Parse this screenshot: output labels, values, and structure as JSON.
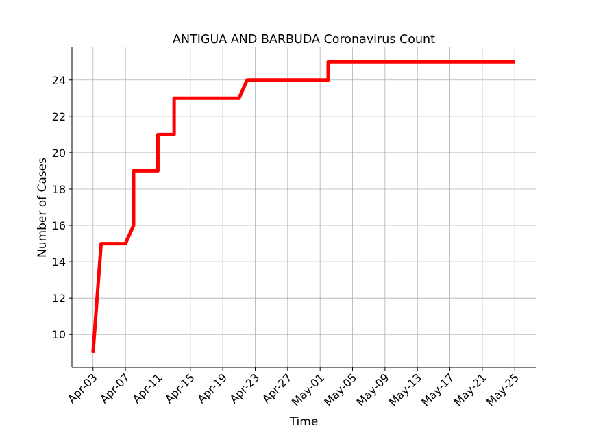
{
  "chart_data": {
    "type": "line",
    "title": "ANTIGUA AND BARBUDA Coronavirus Count",
    "xlabel": "Time",
    "ylabel": "Number of Cases",
    "x_tick_labels": [
      "Apr-03",
      "Apr-07",
      "Apr-11",
      "Apr-15",
      "Apr-19",
      "Apr-23",
      "Apr-27",
      "May-01",
      "May-05",
      "May-09",
      "May-13",
      "May-17",
      "May-21",
      "May-25"
    ],
    "x_tick_dates": [
      "2020-04-03",
      "2020-04-07",
      "2020-04-11",
      "2020-04-15",
      "2020-04-19",
      "2020-04-23",
      "2020-04-27",
      "2020-05-01",
      "2020-05-05",
      "2020-05-09",
      "2020-05-13",
      "2020-05-17",
      "2020-05-21",
      "2020-05-25"
    ],
    "y_ticks": [
      10,
      12,
      14,
      16,
      18,
      20,
      22,
      24
    ],
    "xlim": [
      "2020-04-0.4",
      "2020-05-27.6"
    ],
    "ylim": [
      8.2,
      25.8
    ],
    "grid": true,
    "series": [
      {
        "color": "#ff0000",
        "points": [
          {
            "x": "2020-04-03",
            "y": 9
          },
          {
            "x": "2020-04-04",
            "y": 15
          },
          {
            "x": "2020-04-05",
            "y": 15
          },
          {
            "x": "2020-04-06",
            "y": 15
          },
          {
            "x": "2020-04-07",
            "y": 15
          },
          {
            "x": "2020-04-08",
            "y": 16
          },
          {
            "x": "2020-04-08",
            "y": 19
          },
          {
            "x": "2020-04-09",
            "y": 19
          },
          {
            "x": "2020-04-10",
            "y": 19
          },
          {
            "x": "2020-04-11",
            "y": 19
          },
          {
            "x": "2020-04-11",
            "y": 21
          },
          {
            "x": "2020-04-12",
            "y": 21
          },
          {
            "x": "2020-04-13",
            "y": 21
          },
          {
            "x": "2020-04-13",
            "y": 23
          },
          {
            "x": "2020-04-14",
            "y": 23
          },
          {
            "x": "2020-04-15",
            "y": 23
          },
          {
            "x": "2020-04-16",
            "y": 23
          },
          {
            "x": "2020-04-17",
            "y": 23
          },
          {
            "x": "2020-04-18",
            "y": 23
          },
          {
            "x": "2020-04-19",
            "y": 23
          },
          {
            "x": "2020-04-20",
            "y": 23
          },
          {
            "x": "2020-04-21",
            "y": 23
          },
          {
            "x": "2020-04-22",
            "y": 24
          },
          {
            "x": "2020-04-23",
            "y": 24
          },
          {
            "x": "2020-04-24",
            "y": 24
          },
          {
            "x": "2020-04-25",
            "y": 24
          },
          {
            "x": "2020-04-26",
            "y": 24
          },
          {
            "x": "2020-04-27",
            "y": 24
          },
          {
            "x": "2020-04-28",
            "y": 24
          },
          {
            "x": "2020-04-29",
            "y": 24
          },
          {
            "x": "2020-04-30",
            "y": 24
          },
          {
            "x": "2020-05-01",
            "y": 24
          },
          {
            "x": "2020-05-02",
            "y": 24
          },
          {
            "x": "2020-05-02",
            "y": 25
          },
          {
            "x": "2020-05-05",
            "y": 25
          },
          {
            "x": "2020-05-09",
            "y": 25
          },
          {
            "x": "2020-05-13",
            "y": 25
          },
          {
            "x": "2020-05-17",
            "y": 25
          },
          {
            "x": "2020-05-21",
            "y": 25
          },
          {
            "x": "2020-05-25",
            "y": 25
          }
        ]
      }
    ]
  }
}
